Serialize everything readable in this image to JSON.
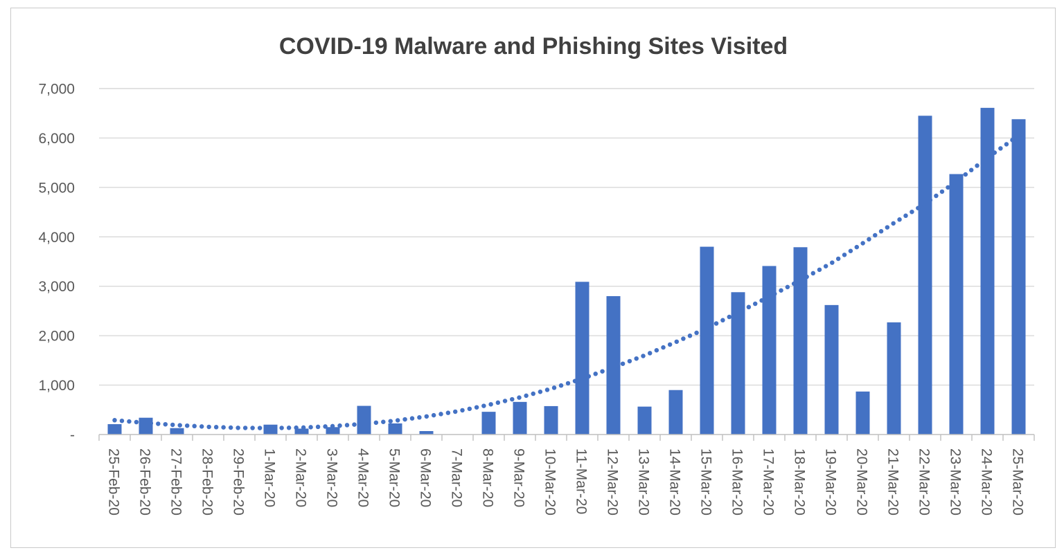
{
  "window": {
    "background_color": "#ffffff",
    "frame_border_color": "#c9c9c9"
  },
  "colors": {
    "bar": "#4472c4",
    "trendline": "#4472c4",
    "gridline": "#d9d9d9",
    "axis_line": "#bfbfbf",
    "tick": "#bfbfbf",
    "axis_label": "#595959",
    "title": "#404040"
  },
  "chart_data": {
    "type": "bar",
    "title": "COVID-19 Malware and Phishing Sites Visited",
    "xlabel": "",
    "ylabel": "",
    "ylim": [
      0,
      7000
    ],
    "ytick_interval": 1000,
    "ytick_labels_top_to_bottom": [
      "7,000",
      "6,000",
      "5,000",
      "4,000",
      "3,000",
      "2,000",
      "1,000",
      "-"
    ],
    "grid": true,
    "legend_position": "none",
    "x_label_rotation_degrees": 90,
    "categories": [
      "25-Feb-20",
      "26-Feb-20",
      "27-Feb-20",
      "28-Feb-20",
      "29-Feb-20",
      "1-Mar-20",
      "2-Mar-20",
      "3-Mar-20",
      "4-Mar-20",
      "5-Mar-20",
      "6-Mar-20",
      "7-Mar-20",
      "8-Mar-20",
      "9-Mar-20",
      "10-Mar-20",
      "11-Mar-20",
      "12-Mar-20",
      "13-Mar-20",
      "14-Mar-20",
      "15-Mar-20",
      "16-Mar-20",
      "17-Mar-20",
      "18-Mar-20",
      "19-Mar-20",
      "20-Mar-20",
      "21-Mar-20",
      "22-Mar-20",
      "23-Mar-20",
      "24-Mar-20",
      "25-Mar-20"
    ],
    "series": [
      {
        "name": "Sites visited",
        "render": "bar",
        "values": [
          210,
          340,
          130,
          0,
          0,
          200,
          120,
          150,
          580,
          225,
          70,
          0,
          460,
          660,
          575,
          3090,
          2800,
          565,
          900,
          3800,
          2880,
          3410,
          3790,
          2620,
          870,
          2270,
          6450,
          5270,
          6610,
          6380
        ]
      },
      {
        "name": "Trendline (dotted)",
        "render": "dotted-line",
        "values": [
          290,
          235,
          190,
          155,
          135,
          130,
          140,
          170,
          215,
          280,
          365,
          470,
          600,
          750,
          925,
          1130,
          1360,
          1600,
          1870,
          2150,
          2470,
          2790,
          3120,
          3470,
          3870,
          4280,
          4670,
          5120,
          5600,
          6050
        ]
      }
    ]
  }
}
